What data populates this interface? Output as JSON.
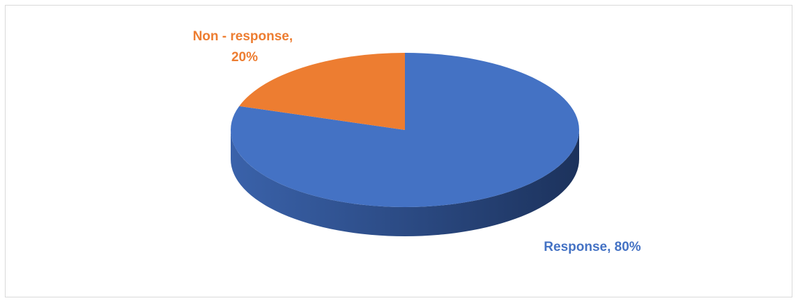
{
  "chart_data": {
    "type": "pie",
    "style": "3d",
    "title": "",
    "categories": [
      "Response",
      "Non - response"
    ],
    "values": [
      80,
      20
    ],
    "colors": [
      "#4472c4",
      "#ed7d31"
    ],
    "labels": [
      {
        "lines": [
          "Response, 80%"
        ],
        "color": "#4472c4"
      },
      {
        "lines": [
          "Non - response,",
          "20%"
        ],
        "color": "#ed7d31"
      }
    ],
    "legend": "none"
  }
}
